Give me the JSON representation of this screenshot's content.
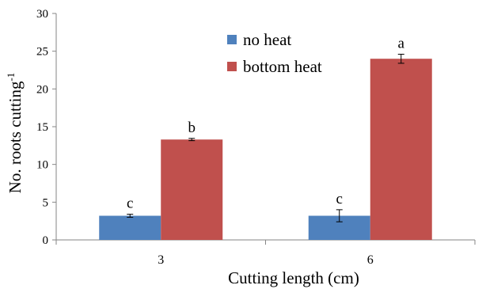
{
  "chart_data": {
    "type": "bar",
    "title": "",
    "xlabel": "Cutting length (cm)",
    "ylabel": "No. roots cutting",
    "ylabel_superscript": "-1",
    "categories": [
      "3",
      "6"
    ],
    "ylim": [
      0,
      30
    ],
    "yticks": [
      0,
      5,
      10,
      15,
      20,
      25,
      30
    ],
    "grid": false,
    "legend_position": "top-center",
    "series": [
      {
        "name": "no heat",
        "color": "#4F81BD",
        "values": [
          3.2,
          3.2
        ],
        "errors": [
          0.2,
          0.8
        ],
        "letters": [
          "c",
          "c"
        ]
      },
      {
        "name": "bottom heat",
        "color": "#C0504D",
        "values": [
          13.3,
          24.0
        ],
        "errors": [
          0.15,
          0.6
        ],
        "letters": [
          "b",
          "a"
        ]
      }
    ]
  }
}
